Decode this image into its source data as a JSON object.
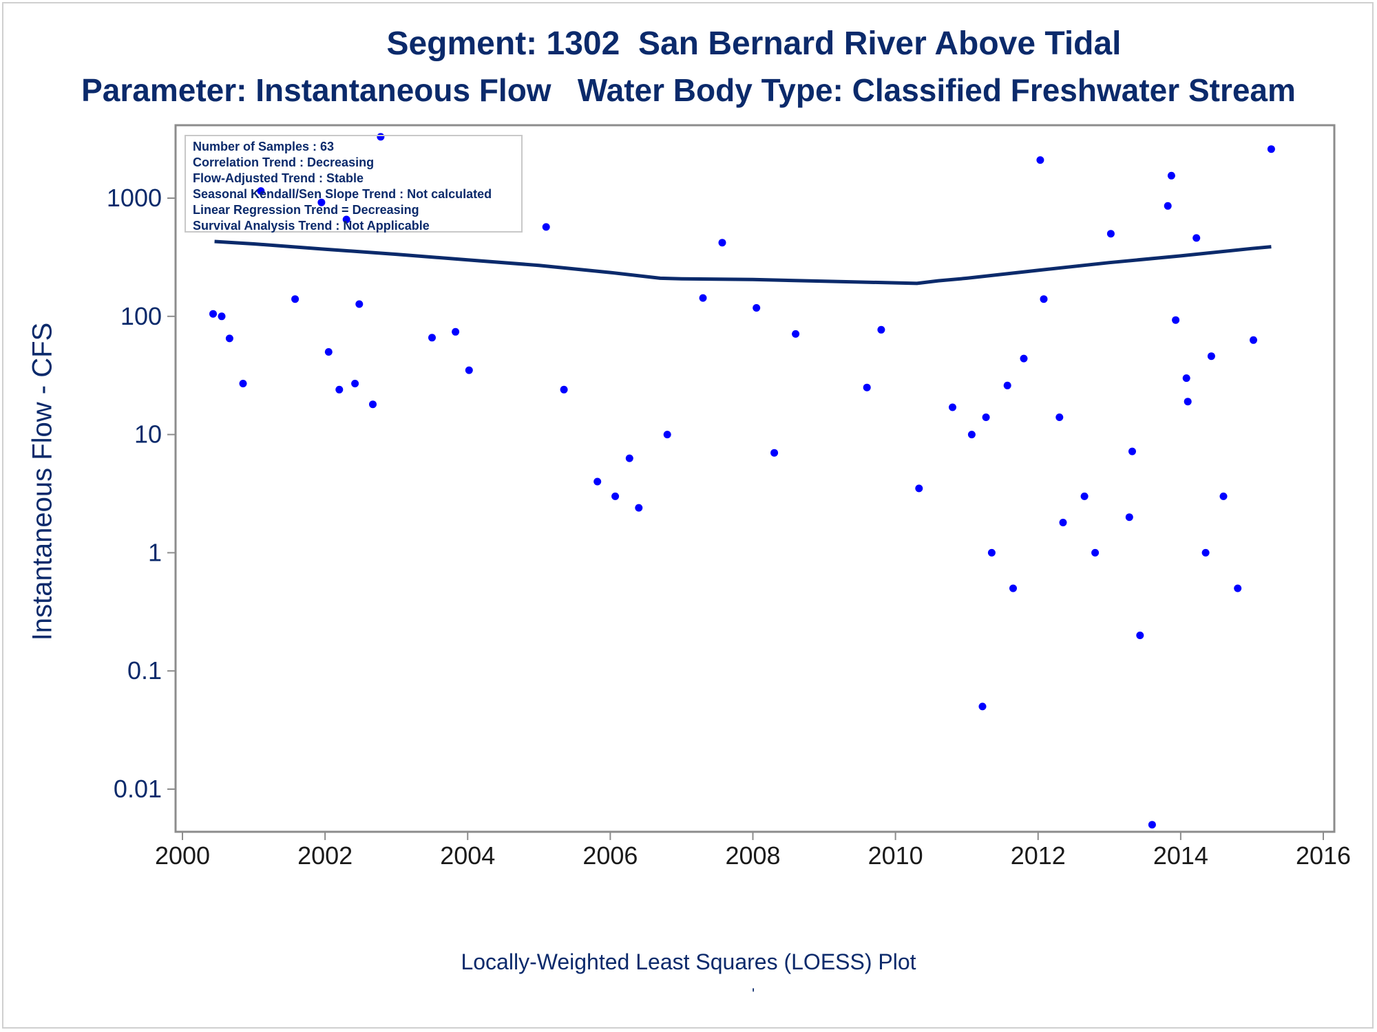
{
  "chart_data": {
    "type": "scatter",
    "title": "Segment: 1302  San Bernard River Above Tidal",
    "subtitle": "Parameter: Instantaneous Flow   Water Body Type: Classified Freshwater Stream",
    "xlabel": "",
    "ylabel": "Instantaneous Flow - CFS",
    "footnote": "Locally-Weighted Least Squares (LOESS) Plot",
    "footnote_mark": "'",
    "xlim": [
      2000,
      2016
    ],
    "ylim": [
      0.005,
      4000
    ],
    "yscale": "log",
    "x_ticks": [
      2000,
      2002,
      2004,
      2006,
      2008,
      2010,
      2012,
      2014,
      2016
    ],
    "y_ticks": [
      0.01,
      0.1,
      1,
      10,
      100,
      1000
    ],
    "y_tick_labels": [
      "0.01",
      "0.1",
      "1",
      "10",
      "100",
      "1000"
    ],
    "grid": false,
    "stats_box": {
      "placement": "top-left",
      "lines": [
        "Number of Samples : 63",
        "Correlation Trend : Decreasing",
        "Flow-Adjusted Trend : Stable",
        "Seasonal Kendall/Sen Slope Trend : Not calculated",
        "Linear Regression Trend = Decreasing",
        "Survival Analysis Trend : Not Applicable"
      ]
    },
    "series": [
      {
        "kind": "points",
        "color": "#0000ff",
        "points": [
          [
            2000.43,
            105
          ],
          [
            2000.55,
            100
          ],
          [
            2000.66,
            65
          ],
          [
            2000.85,
            27
          ],
          [
            2001.1,
            1150
          ],
          [
            2001.58,
            140
          ],
          [
            2001.95,
            920
          ],
          [
            2002.05,
            50
          ],
          [
            2002.2,
            24
          ],
          [
            2002.3,
            660
          ],
          [
            2002.42,
            27
          ],
          [
            2002.48,
            127
          ],
          [
            2002.67,
            18
          ],
          [
            2002.78,
            3300
          ],
          [
            2003.5,
            66
          ],
          [
            2003.83,
            74
          ],
          [
            2004.02,
            35
          ],
          [
            2005.1,
            570
          ],
          [
            2005.35,
            24
          ],
          [
            2005.82,
            4
          ],
          [
            2006.07,
            3
          ],
          [
            2006.27,
            6.3
          ],
          [
            2006.4,
            2.4
          ],
          [
            2006.8,
            10
          ],
          [
            2007.3,
            143
          ],
          [
            2007.57,
            420
          ],
          [
            2008.05,
            118
          ],
          [
            2008.3,
            7
          ],
          [
            2008.6,
            71
          ],
          [
            2009.6,
            25
          ],
          [
            2009.8,
            77
          ],
          [
            2010.33,
            3.5
          ],
          [
            2010.8,
            17
          ],
          [
            2011.07,
            10
          ],
          [
            2011.22,
            0.05
          ],
          [
            2011.27,
            14
          ],
          [
            2011.35,
            1
          ],
          [
            2011.57,
            26
          ],
          [
            2011.65,
            0.5
          ],
          [
            2011.8,
            44
          ],
          [
            2012.03,
            2100
          ],
          [
            2012.08,
            140
          ],
          [
            2012.3,
            14
          ],
          [
            2012.35,
            1.8
          ],
          [
            2012.65,
            3
          ],
          [
            2012.8,
            1
          ],
          [
            2013.02,
            500
          ],
          [
            2013.28,
            2
          ],
          [
            2013.32,
            7.2
          ],
          [
            2013.43,
            0.2
          ],
          [
            2013.6,
            0.005
          ],
          [
            2013.82,
            860
          ],
          [
            2013.87,
            1550
          ],
          [
            2013.93,
            93
          ],
          [
            2014.08,
            30
          ],
          [
            2014.1,
            19
          ],
          [
            2014.22,
            460
          ],
          [
            2014.35,
            1
          ],
          [
            2014.43,
            46
          ],
          [
            2014.6,
            3
          ],
          [
            2014.8,
            0.5
          ],
          [
            2015.02,
            63
          ],
          [
            2015.27,
            2600
          ]
        ]
      },
      {
        "kind": "loess",
        "color": "#0b2a6b",
        "points": [
          [
            2000.45,
            430
          ],
          [
            2001,
            410
          ],
          [
            2002,
            370
          ],
          [
            2003,
            335
          ],
          [
            2004,
            300
          ],
          [
            2005,
            270
          ],
          [
            2006,
            235
          ],
          [
            2006.7,
            210
          ],
          [
            2007,
            208
          ],
          [
            2008,
            205
          ],
          [
            2009,
            198
          ],
          [
            2010,
            192
          ],
          [
            2010.3,
            190
          ],
          [
            2010.6,
            200
          ],
          [
            2011,
            210
          ],
          [
            2012,
            245
          ],
          [
            2013,
            285
          ],
          [
            2014,
            325
          ],
          [
            2015,
            375
          ],
          [
            2015.27,
            388
          ]
        ]
      }
    ]
  }
}
